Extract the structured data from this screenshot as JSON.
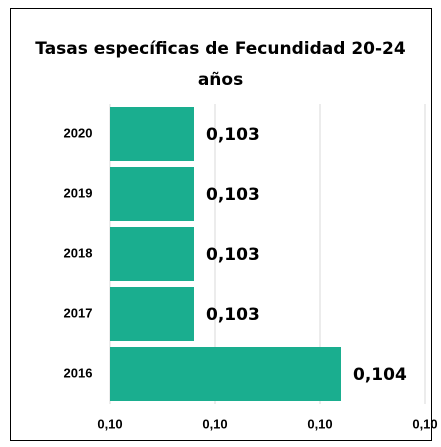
{
  "chart_data": {
    "type": "bar",
    "orientation": "horizontal",
    "title": "Tasas específicas de Fecundidad 20-24 años",
    "categories": [
      "2020",
      "2019",
      "2018",
      "2017",
      "2016"
    ],
    "values": [
      0.1029,
      0.1029,
      0.1029,
      0.1029,
      0.1036
    ],
    "value_labels": [
      "0,103",
      "0,103",
      "0,103",
      "0,103",
      "0,104"
    ],
    "color": "#1aae8f",
    "xlim": [
      0.1025,
      0.104
    ],
    "xticks": [
      {
        "value": 0.1025,
        "label": "0,10"
      },
      {
        "value": 0.103,
        "label": "0,10"
      },
      {
        "value": 0.1035,
        "label": "0,10"
      },
      {
        "value": 0.104,
        "label": "0,10"
      }
    ],
    "grid": true
  }
}
